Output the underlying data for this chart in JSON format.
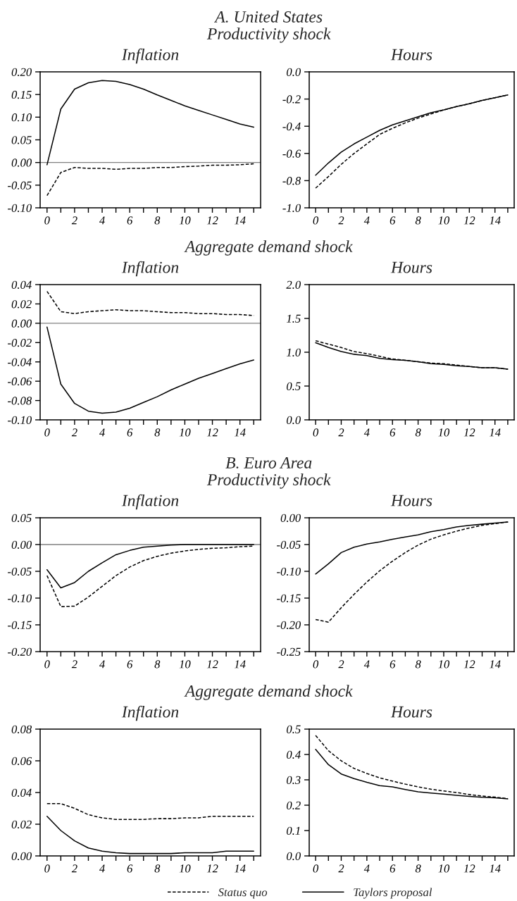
{
  "chart_data": [
    {
      "type": "line",
      "title": "Inflation",
      "annotations": [
        "A. United States",
        "Productivity shock"
      ],
      "x": [
        0,
        1,
        2,
        3,
        4,
        5,
        6,
        7,
        8,
        9,
        10,
        11,
        12,
        13,
        14,
        15
      ],
      "xlim": [
        -0.5,
        15.5
      ],
      "xticks": [
        {
          "value": 0,
          "label": "0"
        },
        {
          "value": 1,
          "label": null
        },
        {
          "value": 2,
          "label": "2"
        },
        {
          "value": 3,
          "label": null
        },
        {
          "value": 4,
          "label": "4"
        },
        {
          "value": 5,
          "label": null
        },
        {
          "value": 6,
          "label": "6"
        },
        {
          "value": 7,
          "label": null
        },
        {
          "value": 8,
          "label": "8"
        },
        {
          "value": 9,
          "label": null
        },
        {
          "value": 10,
          "label": "10"
        },
        {
          "value": 11,
          "label": null
        },
        {
          "value": 12,
          "label": "12"
        },
        {
          "value": 13,
          "label": null
        },
        {
          "value": 14,
          "label": "14"
        },
        {
          "value": 15,
          "label": null
        }
      ],
      "ylim": [
        -0.1,
        0.2
      ],
      "yticks": [
        {
          "value": -0.1,
          "label": "-0.10"
        },
        {
          "value": -0.05,
          "label": "-0.05"
        },
        {
          "value": 0.0,
          "label": "0.00"
        },
        {
          "value": 0.05,
          "label": "0.05"
        },
        {
          "value": 0.1,
          "label": "0.10"
        },
        {
          "value": 0.15,
          "label": "0.15"
        },
        {
          "value": 0.2,
          "label": "0.20"
        }
      ],
      "ref_lines": [
        {
          "axis": "y",
          "value": 0,
          "color": "#808080"
        }
      ],
      "series": [
        {
          "color": "#000000",
          "line_style": "dashed",
          "values": [
            -0.073,
            -0.022,
            -0.011,
            -0.013,
            -0.013,
            -0.015,
            -0.013,
            -0.013,
            -0.011,
            -0.011,
            -0.009,
            -0.008,
            -0.006,
            -0.006,
            -0.005,
            -0.003
          ]
        },
        {
          "color": "#000000",
          "line_style": "solid",
          "values": [
            -0.005,
            0.118,
            0.162,
            0.176,
            0.181,
            0.179,
            0.172,
            0.162,
            0.149,
            0.137,
            0.125,
            0.115,
            0.105,
            0.095,
            0.085,
            0.078
          ]
        }
      ]
    },
    {
      "type": "line",
      "title": "Hours",
      "x": [
        0,
        1,
        2,
        3,
        4,
        5,
        6,
        7,
        8,
        9,
        10,
        11,
        12,
        13,
        14,
        15
      ],
      "xlim": [
        -0.5,
        15.5
      ],
      "xticks": [
        {
          "value": 0,
          "label": "0"
        },
        {
          "value": 1,
          "label": null
        },
        {
          "value": 2,
          "label": "2"
        },
        {
          "value": 3,
          "label": null
        },
        {
          "value": 4,
          "label": "4"
        },
        {
          "value": 5,
          "label": null
        },
        {
          "value": 6,
          "label": "6"
        },
        {
          "value": 7,
          "label": null
        },
        {
          "value": 8,
          "label": "8"
        },
        {
          "value": 9,
          "label": null
        },
        {
          "value": 10,
          "label": "10"
        },
        {
          "value": 11,
          "label": null
        },
        {
          "value": 12,
          "label": "12"
        },
        {
          "value": 13,
          "label": null
        },
        {
          "value": 14,
          "label": "14"
        },
        {
          "value": 15,
          "label": null
        }
      ],
      "ylim": [
        -1.0,
        0.0
      ],
      "yticks": [
        {
          "value": -1.0,
          "label": "-1.0"
        },
        {
          "value": -0.8,
          "label": "-0.8"
        },
        {
          "value": -0.6,
          "label": "-0.6"
        },
        {
          "value": -0.4,
          "label": "-0.4"
        },
        {
          "value": -0.2,
          "label": "-0.2"
        },
        {
          "value": 0.0,
          "label": "0.0"
        }
      ],
      "series": [
        {
          "color": "#000000",
          "line_style": "dashed",
          "values": [
            -0.855,
            -0.77,
            -0.68,
            -0.6,
            -0.53,
            -0.46,
            -0.415,
            -0.375,
            -0.34,
            -0.31,
            -0.28,
            -0.255,
            -0.235,
            -0.21,
            -0.19,
            -0.17
          ]
        },
        {
          "color": "#000000",
          "line_style": "solid",
          "values": [
            -0.76,
            -0.67,
            -0.59,
            -0.53,
            -0.48,
            -0.43,
            -0.39,
            -0.36,
            -0.33,
            -0.3,
            -0.28,
            -0.255,
            -0.235,
            -0.21,
            -0.19,
            -0.17
          ]
        }
      ]
    },
    {
      "type": "line",
      "title": "Inflation",
      "annotations": [
        "Aggregate demand shock"
      ],
      "x": [
        0,
        1,
        2,
        3,
        4,
        5,
        6,
        7,
        8,
        9,
        10,
        11,
        12,
        13,
        14,
        15
      ],
      "xlim": [
        -0.5,
        15.5
      ],
      "xticks": [
        {
          "value": 0,
          "label": "0"
        },
        {
          "value": 1,
          "label": null
        },
        {
          "value": 2,
          "label": "2"
        },
        {
          "value": 3,
          "label": null
        },
        {
          "value": 4,
          "label": "4"
        },
        {
          "value": 5,
          "label": null
        },
        {
          "value": 6,
          "label": "6"
        },
        {
          "value": 7,
          "label": null
        },
        {
          "value": 8,
          "label": "8"
        },
        {
          "value": 9,
          "label": null
        },
        {
          "value": 10,
          "label": "10"
        },
        {
          "value": 11,
          "label": null
        },
        {
          "value": 12,
          "label": "12"
        },
        {
          "value": 13,
          "label": null
        },
        {
          "value": 14,
          "label": "14"
        },
        {
          "value": 15,
          "label": null
        }
      ],
      "ylim": [
        -0.1,
        0.04
      ],
      "yticks": [
        {
          "value": -0.1,
          "label": "-0.10"
        },
        {
          "value": -0.08,
          "label": "-0.08"
        },
        {
          "value": -0.06,
          "label": "-0.06"
        },
        {
          "value": -0.04,
          "label": "-0.04"
        },
        {
          "value": -0.02,
          "label": "-0.02"
        },
        {
          "value": 0.0,
          "label": "0.00"
        },
        {
          "value": 0.02,
          "label": "0.02"
        },
        {
          "value": 0.04,
          "label": "0.04"
        }
      ],
      "ref_lines": [
        {
          "axis": "y",
          "value": 0,
          "color": "#808080"
        }
      ],
      "series": [
        {
          "color": "#000000",
          "line_style": "dashed",
          "values": [
            0.033,
            0.012,
            0.01,
            0.012,
            0.013,
            0.014,
            0.013,
            0.013,
            0.012,
            0.011,
            0.011,
            0.01,
            0.01,
            0.009,
            0.009,
            0.008
          ]
        },
        {
          "color": "#000000",
          "line_style": "solid",
          "values": [
            -0.004,
            -0.063,
            -0.083,
            -0.091,
            -0.093,
            -0.092,
            -0.088,
            -0.082,
            -0.076,
            -0.069,
            -0.063,
            -0.057,
            -0.052,
            -0.047,
            -0.042,
            -0.038
          ]
        }
      ]
    },
    {
      "type": "line",
      "title": "Hours",
      "x": [
        0,
        1,
        2,
        3,
        4,
        5,
        6,
        7,
        8,
        9,
        10,
        11,
        12,
        13,
        14,
        15
      ],
      "xlim": [
        -0.5,
        15.5
      ],
      "xticks": [
        {
          "value": 0,
          "label": "0"
        },
        {
          "value": 1,
          "label": null
        },
        {
          "value": 2,
          "label": "2"
        },
        {
          "value": 3,
          "label": null
        },
        {
          "value": 4,
          "label": "4"
        },
        {
          "value": 5,
          "label": null
        },
        {
          "value": 6,
          "label": "6"
        },
        {
          "value": 7,
          "label": null
        },
        {
          "value": 8,
          "label": "8"
        },
        {
          "value": 9,
          "label": null
        },
        {
          "value": 10,
          "label": "10"
        },
        {
          "value": 11,
          "label": null
        },
        {
          "value": 12,
          "label": "12"
        },
        {
          "value": 13,
          "label": null
        },
        {
          "value": 14,
          "label": "14"
        },
        {
          "value": 15,
          "label": null
        }
      ],
      "ylim": [
        0.0,
        2.0
      ],
      "yticks": [
        {
          "value": 0.0,
          "label": "0.0"
        },
        {
          "value": 0.5,
          "label": "0.5"
        },
        {
          "value": 1.0,
          "label": "1.0"
        },
        {
          "value": 1.5,
          "label": "1.5"
        },
        {
          "value": 2.0,
          "label": "2.0"
        }
      ],
      "series": [
        {
          "color": "#000000",
          "line_style": "dashed",
          "values": [
            1.17,
            1.12,
            1.07,
            1.01,
            0.98,
            0.94,
            0.9,
            0.88,
            0.86,
            0.84,
            0.83,
            0.81,
            0.79,
            0.77,
            0.77,
            0.75
          ]
        },
        {
          "color": "#000000",
          "line_style": "solid",
          "values": [
            1.14,
            1.07,
            1.01,
            0.97,
            0.95,
            0.91,
            0.89,
            0.88,
            0.86,
            0.83,
            0.82,
            0.8,
            0.79,
            0.77,
            0.77,
            0.75
          ]
        }
      ]
    },
    {
      "type": "line",
      "title": "Inflation",
      "annotations": [
        "B. Euro Area",
        "Productivity shock"
      ],
      "x": [
        0,
        1,
        2,
        3,
        4,
        5,
        6,
        7,
        8,
        9,
        10,
        11,
        12,
        13,
        14,
        15
      ],
      "xlim": [
        -0.5,
        15.5
      ],
      "xticks": [
        {
          "value": 0,
          "label": "0"
        },
        {
          "value": 1,
          "label": null
        },
        {
          "value": 2,
          "label": "2"
        },
        {
          "value": 3,
          "label": null
        },
        {
          "value": 4,
          "label": "4"
        },
        {
          "value": 5,
          "label": null
        },
        {
          "value": 6,
          "label": "6"
        },
        {
          "value": 7,
          "label": null
        },
        {
          "value": 8,
          "label": "8"
        },
        {
          "value": 9,
          "label": null
        },
        {
          "value": 10,
          "label": "10"
        },
        {
          "value": 11,
          "label": null
        },
        {
          "value": 12,
          "label": "12"
        },
        {
          "value": 13,
          "label": null
        },
        {
          "value": 14,
          "label": "14"
        },
        {
          "value": 15,
          "label": null
        }
      ],
      "ylim": [
        -0.2,
        0.05
      ],
      "yticks": [
        {
          "value": -0.2,
          "label": "-0.20"
        },
        {
          "value": -0.15,
          "label": "-0.15"
        },
        {
          "value": -0.1,
          "label": "-0.10"
        },
        {
          "value": -0.05,
          "label": "-0.05"
        },
        {
          "value": 0.0,
          "label": "0.00"
        },
        {
          "value": 0.05,
          "label": "0.05"
        }
      ],
      "ref_lines": [
        {
          "axis": "y",
          "value": 0,
          "color": "#808080"
        }
      ],
      "series": [
        {
          "color": "#000000",
          "line_style": "dashed",
          "values": [
            -0.058,
            -0.116,
            -0.115,
            -0.098,
            -0.078,
            -0.058,
            -0.042,
            -0.03,
            -0.022,
            -0.016,
            -0.012,
            -0.009,
            -0.007,
            -0.006,
            -0.004,
            -0.003
          ]
        },
        {
          "color": "#000000",
          "line_style": "solid",
          "values": [
            -0.047,
            -0.081,
            -0.071,
            -0.05,
            -0.034,
            -0.019,
            -0.011,
            -0.005,
            -0.003,
            -0.001,
            0.0,
            0.0,
            0.0,
            0.0,
            0.0,
            0.0
          ]
        }
      ]
    },
    {
      "type": "line",
      "title": "Hours",
      "x": [
        0,
        1,
        2,
        3,
        4,
        5,
        6,
        7,
        8,
        9,
        10,
        11,
        12,
        13,
        14,
        15
      ],
      "xlim": [
        -0.5,
        15.5
      ],
      "xticks": [
        {
          "value": 0,
          "label": "0"
        },
        {
          "value": 1,
          "label": null
        },
        {
          "value": 2,
          "label": "2"
        },
        {
          "value": 3,
          "label": null
        },
        {
          "value": 4,
          "label": "4"
        },
        {
          "value": 5,
          "label": null
        },
        {
          "value": 6,
          "label": "6"
        },
        {
          "value": 7,
          "label": null
        },
        {
          "value": 8,
          "label": "8"
        },
        {
          "value": 9,
          "label": null
        },
        {
          "value": 10,
          "label": "10"
        },
        {
          "value": 11,
          "label": null
        },
        {
          "value": 12,
          "label": "12"
        },
        {
          "value": 13,
          "label": null
        },
        {
          "value": 14,
          "label": "14"
        },
        {
          "value": 15,
          "label": null
        }
      ],
      "ylim": [
        -0.25,
        0.0
      ],
      "yticks": [
        {
          "value": -0.25,
          "label": "-0.25"
        },
        {
          "value": -0.2,
          "label": "-0.20"
        },
        {
          "value": -0.15,
          "label": "-0.15"
        },
        {
          "value": -0.1,
          "label": "-0.10"
        },
        {
          "value": -0.05,
          "label": "-0.05"
        },
        {
          "value": 0.0,
          "label": "0.00"
        }
      ],
      "series": [
        {
          "color": "#000000",
          "line_style": "dashed",
          "values": [
            -0.19,
            -0.195,
            -0.168,
            -0.143,
            -0.12,
            -0.099,
            -0.081,
            -0.065,
            -0.051,
            -0.04,
            -0.032,
            -0.025,
            -0.019,
            -0.014,
            -0.011,
            -0.008
          ]
        },
        {
          "color": "#000000",
          "line_style": "solid",
          "values": [
            -0.105,
            -0.086,
            -0.065,
            -0.055,
            -0.049,
            -0.045,
            -0.04,
            -0.036,
            -0.032,
            -0.026,
            -0.022,
            -0.017,
            -0.014,
            -0.012,
            -0.01,
            -0.008
          ]
        }
      ]
    },
    {
      "type": "line",
      "title": "Inflation",
      "annotations": [
        "Aggregate demand shock"
      ],
      "x": [
        0,
        1,
        2,
        3,
        4,
        5,
        6,
        7,
        8,
        9,
        10,
        11,
        12,
        13,
        14,
        15
      ],
      "xlim": [
        -0.5,
        15.5
      ],
      "xticks": [
        {
          "value": 0,
          "label": "0"
        },
        {
          "value": 1,
          "label": null
        },
        {
          "value": 2,
          "label": "2"
        },
        {
          "value": 3,
          "label": null
        },
        {
          "value": 4,
          "label": "4"
        },
        {
          "value": 5,
          "label": null
        },
        {
          "value": 6,
          "label": "6"
        },
        {
          "value": 7,
          "label": null
        },
        {
          "value": 8,
          "label": "8"
        },
        {
          "value": 9,
          "label": null
        },
        {
          "value": 10,
          "label": "10"
        },
        {
          "value": 11,
          "label": null
        },
        {
          "value": 12,
          "label": "12"
        },
        {
          "value": 13,
          "label": null
        },
        {
          "value": 14,
          "label": "14"
        },
        {
          "value": 15,
          "label": null
        }
      ],
      "ylim": [
        0.0,
        0.08
      ],
      "yticks": [
        {
          "value": 0.0,
          "label": "0.00"
        },
        {
          "value": 0.02,
          "label": "0.02"
        },
        {
          "value": 0.04,
          "label": "0.04"
        },
        {
          "value": 0.06,
          "label": "0.06"
        },
        {
          "value": 0.08,
          "label": "0.08"
        }
      ],
      "series": [
        {
          "color": "#000000",
          "line_style": "dashed",
          "values": [
            0.033,
            0.033,
            0.03,
            0.026,
            0.024,
            0.023,
            0.023,
            0.023,
            0.0235,
            0.0235,
            0.024,
            0.024,
            0.025,
            0.025,
            0.025,
            0.025
          ]
        },
        {
          "color": "#000000",
          "line_style": "solid",
          "values": [
            0.025,
            0.016,
            0.0095,
            0.005,
            0.003,
            0.002,
            0.0015,
            0.0015,
            0.0015,
            0.0015,
            0.002,
            0.002,
            0.002,
            0.003,
            0.003,
            0.003
          ]
        }
      ]
    },
    {
      "type": "line",
      "title": "Hours",
      "legend": "bottom",
      "x": [
        0,
        1,
        2,
        3,
        4,
        5,
        6,
        7,
        8,
        9,
        10,
        11,
        12,
        13,
        14,
        15
      ],
      "xlim": [
        -0.5,
        15.5
      ],
      "xticks": [
        {
          "value": 0,
          "label": "0"
        },
        {
          "value": 1,
          "label": null
        },
        {
          "value": 2,
          "label": "2"
        },
        {
          "value": 3,
          "label": null
        },
        {
          "value": 4,
          "label": "4"
        },
        {
          "value": 5,
          "label": null
        },
        {
          "value": 6,
          "label": "6"
        },
        {
          "value": 7,
          "label": null
        },
        {
          "value": 8,
          "label": "8"
        },
        {
          "value": 9,
          "label": null
        },
        {
          "value": 10,
          "label": "10"
        },
        {
          "value": 11,
          "label": null
        },
        {
          "value": 12,
          "label": "12"
        },
        {
          "value": 13,
          "label": null
        },
        {
          "value": 14,
          "label": "14"
        },
        {
          "value": 15,
          "label": null
        }
      ],
      "ylim": [
        0.0,
        0.5
      ],
      "yticks": [
        {
          "value": 0.0,
          "label": "0.0"
        },
        {
          "value": 0.1,
          "label": "0.1"
        },
        {
          "value": 0.2,
          "label": "0.2"
        },
        {
          "value": 0.3,
          "label": "0.3"
        },
        {
          "value": 0.4,
          "label": "0.4"
        },
        {
          "value": 0.5,
          "label": "0.5"
        }
      ],
      "series": [
        {
          "name": "Status quo",
          "color": "#000000",
          "line_style": "dashed",
          "values": [
            0.475,
            0.415,
            0.375,
            0.345,
            0.325,
            0.308,
            0.295,
            0.283,
            0.272,
            0.263,
            0.256,
            0.25,
            0.242,
            0.236,
            0.232,
            0.226
          ]
        },
        {
          "name": "Taylors proposal",
          "color": "#000000",
          "line_style": "solid",
          "values": [
            0.42,
            0.36,
            0.323,
            0.305,
            0.29,
            0.277,
            0.272,
            0.262,
            0.253,
            0.248,
            0.244,
            0.239,
            0.235,
            0.231,
            0.229,
            0.225
          ]
        }
      ]
    }
  ]
}
